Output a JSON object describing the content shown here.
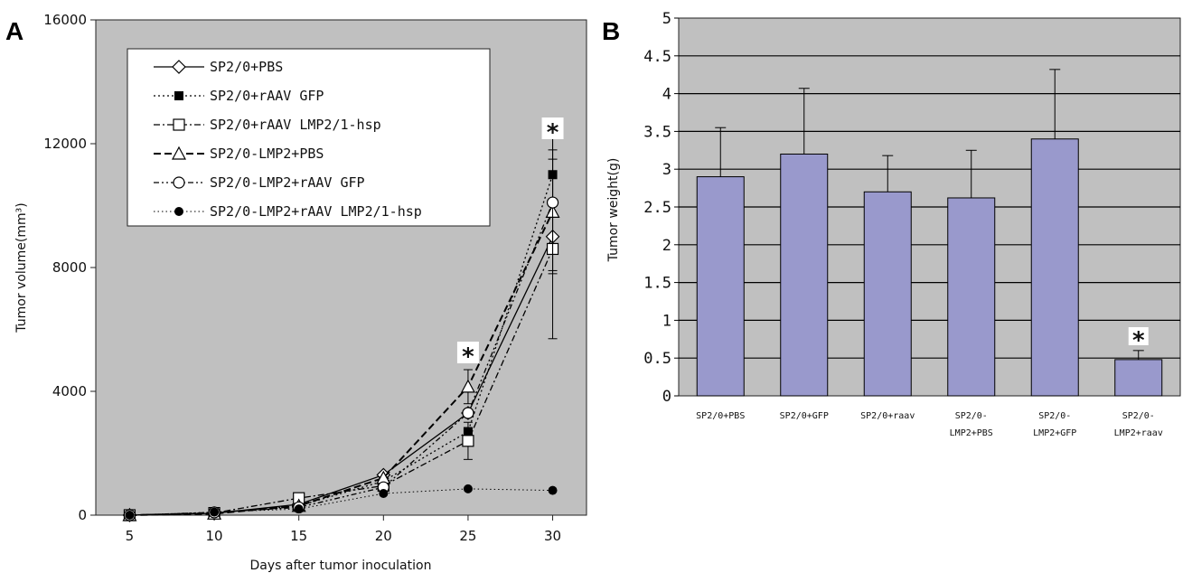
{
  "panels": {
    "a_letter": "A",
    "b_letter": "B"
  },
  "chart_data": [
    {
      "type": "line",
      "title": "",
      "xlabel": "Days after tumor inoculation",
      "ylabel": "Tumor volume(mm³)",
      "x": [
        5,
        10,
        15,
        20,
        25,
        30
      ],
      "xlim": [
        3,
        32
      ],
      "ylim": [
        0,
        16000
      ],
      "y_ticks": [
        0,
        4000,
        8000,
        12000,
        16000
      ],
      "x_ticks": [
        5,
        10,
        15,
        20,
        25,
        30
      ],
      "legend_position": "top-left",
      "series": [
        {
          "name": "SP2/0+PBS",
          "values": [
            0,
            60,
            350,
            1300,
            3300,
            9000
          ],
          "error": [
            0,
            0,
            0,
            0,
            0,
            0
          ],
          "line": "solid",
          "marker": "diamond-open"
        },
        {
          "name": "SP2/0+rAAV GFP",
          "values": [
            0,
            80,
            300,
            1100,
            2700,
            11000
          ],
          "error": [
            0,
            0,
            0,
            0,
            0,
            1300
          ],
          "line": "dotted",
          "marker": "square-filled"
        },
        {
          "name": "SP2/0+rAAV LMP2/1-hsp",
          "values": [
            0,
            70,
            550,
            950,
            2400,
            8600
          ],
          "error": [
            0,
            0,
            0,
            0,
            600,
            2900
          ],
          "line": "dashdot",
          "marker": "square-open"
        },
        {
          "name": "SP2/0-LMP2+PBS",
          "values": [
            0,
            50,
            300,
            1200,
            4150,
            9800
          ],
          "error": [
            0,
            0,
            0,
            0,
            550,
            2000
          ],
          "line": "dashed",
          "marker": "triangle-open"
        },
        {
          "name": "SP2/0-LMP2+rAAV GFP",
          "values": [
            0,
            90,
            250,
            900,
            3300,
            10100
          ],
          "error": [
            0,
            0,
            0,
            0,
            0,
            2200
          ],
          "line": "dashdotdot",
          "marker": "circle-open"
        },
        {
          "name": "SP2/0-LMP2+rAAV LMP2/1-hsp",
          "values": [
            0,
            100,
            200,
            700,
            850,
            800
          ],
          "error": [
            0,
            0,
            0,
            0,
            0,
            0
          ],
          "line": "thin-dotted",
          "marker": "circle-filled"
        }
      ],
      "annotations": [
        {
          "x": 25,
          "text": "*"
        },
        {
          "x": 30,
          "text": "*"
        }
      ]
    },
    {
      "type": "bar",
      "title": "",
      "xlabel": "",
      "ylabel": "Tumor weight(g)",
      "categories": [
        [
          "SP2/0+PBS"
        ],
        [
          "SP2/0+GFP"
        ],
        [
          "SP2/0+raav"
        ],
        [
          "SP2/0-",
          "LMP2+PBS"
        ],
        [
          "SP2/0-",
          "LMP2+GFP"
        ],
        [
          "SP2/0-",
          "LMP2+raav"
        ]
      ],
      "values": [
        2.9,
        3.2,
        2.7,
        2.62,
        3.4,
        0.48
      ],
      "error": [
        0.65,
        0.87,
        0.48,
        0.63,
        0.92,
        0.12
      ],
      "ylim": [
        0,
        5
      ],
      "y_ticks": [
        "0",
        "0.5",
        "1",
        "1.5",
        "2",
        "2.5",
        "3",
        "3.5",
        "4",
        "4.5",
        "5"
      ],
      "grid": true,
      "bar_color": "#9999cc",
      "annotations": [
        {
          "category_index": 5,
          "text": "*"
        }
      ]
    }
  ],
  "colors": {
    "plot_bg": "#c0c0c0",
    "bar": "#9999cc",
    "line": "#000000"
  }
}
